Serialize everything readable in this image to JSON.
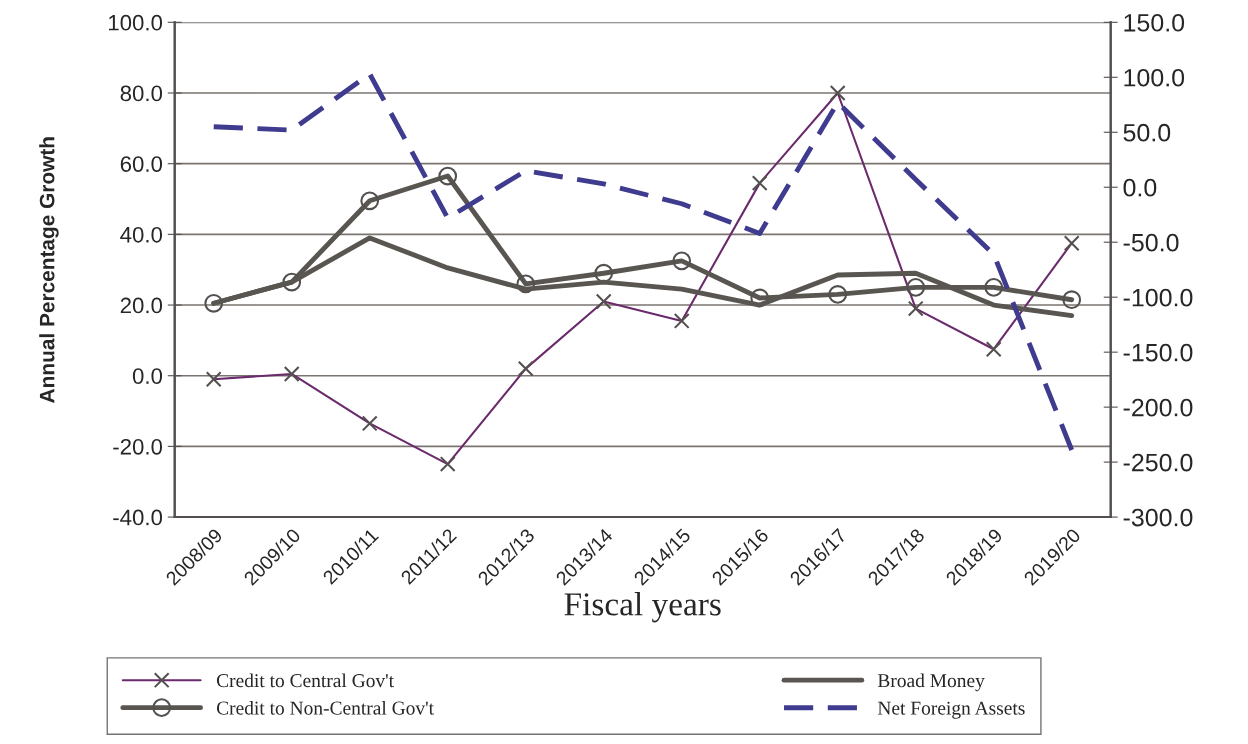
{
  "chart_data": {
    "type": "line",
    "xlabel": "Fiscal years",
    "ylabel": "Annual Percentage Growth",
    "categories": [
      "2008/09",
      "2009/10",
      "2010/11",
      "2011/12",
      "2012/13",
      "2013/14",
      "2014/15",
      "2015/16",
      "2016/17",
      "2017/18",
      "2018/19",
      "2019/20"
    ],
    "series": [
      {
        "name": "Credit to Central Gov't",
        "color": "#6b2a6b",
        "marker": "cross",
        "line_style": "solid",
        "values": [
          -1.0,
          0.5,
          -13.5,
          -25.0,
          2.0,
          21.0,
          15.5,
          54.5,
          80.0,
          19.0,
          7.5,
          37.5
        ]
      },
      {
        "name": "Credit to Non-Central Gov't",
        "color": "#595550",
        "marker": "circle",
        "line_style": "solid",
        "values": [
          20.5,
          26.5,
          49.5,
          56.5,
          26.0,
          29.0,
          32.5,
          22.0,
          23.0,
          25.0,
          25.0,
          21.5
        ]
      },
      {
        "name": "Broad Money",
        "color": "#595550",
        "marker": "none",
        "line_style": "solid",
        "values": [
          20.5,
          26.5,
          39.0,
          30.5,
          24.5,
          26.5,
          24.5,
          20.0,
          28.5,
          29.0,
          20.0,
          17.0
        ]
      },
      {
        "name": "Net Foreign Assets",
        "color": "#3f3b8f",
        "marker": "none",
        "line_style": "dashed",
        "axis": "y2",
        "values": [
          55,
          52,
          103,
          -28,
          15,
          3,
          -15,
          -42,
          77,
          7,
          -61,
          -239
        ]
      }
    ],
    "ylim": [
      -40,
      100
    ],
    "yticks": [
      {
        "value": -40,
        "label": "-40.0"
      },
      {
        "value": -20,
        "label": "-20.0"
      },
      {
        "value": 0,
        "label": "0.0"
      },
      {
        "value": 20,
        "label": "20.0"
      },
      {
        "value": 40,
        "label": "40.0"
      },
      {
        "value": 60,
        "label": "60.0"
      },
      {
        "value": 80,
        "label": "80.0"
      },
      {
        "value": 100,
        "label": "100.0"
      }
    ],
    "y2lim": [
      -300,
      150
    ],
    "y2ticks": [
      {
        "value": -300,
        "label": "-300.0"
      },
      {
        "value": -250,
        "label": "-250.0"
      },
      {
        "value": -200,
        "label": "-200.0"
      },
      {
        "value": -150,
        "label": "-150.0"
      },
      {
        "value": -100,
        "label": "-100.0"
      },
      {
        "value": -50,
        "label": "-50.0"
      },
      {
        "value": 0,
        "label": "0.0"
      },
      {
        "value": 50,
        "label": "50.0"
      },
      {
        "value": 100,
        "label": "100.0"
      },
      {
        "value": 150,
        "label": "150.0"
      }
    ],
    "grid": "y",
    "legend": "bottom"
  }
}
